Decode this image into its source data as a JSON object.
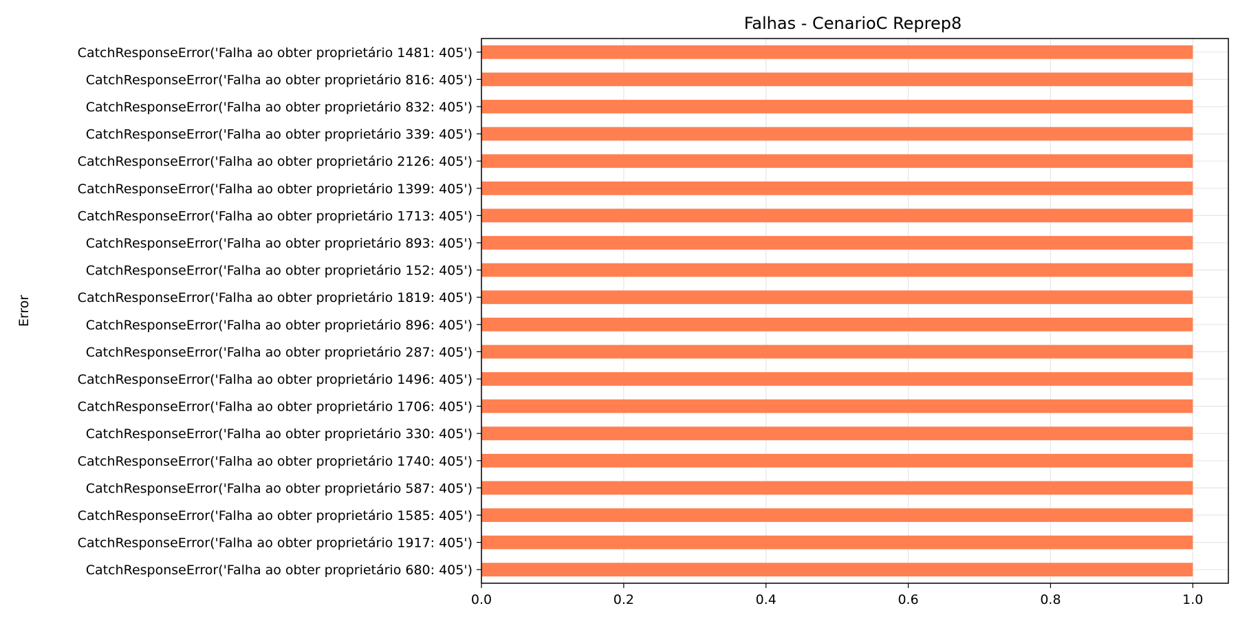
{
  "chart_data": {
    "type": "bar",
    "orientation": "horizontal",
    "title": "Falhas - CenarioC Reprep8",
    "xlabel": "",
    "ylabel": "Error",
    "xlim": [
      0,
      1.05
    ],
    "xticks": [
      0.0,
      0.2,
      0.4,
      0.6,
      0.8,
      1.0
    ],
    "xtick_labels": [
      "0.0",
      "0.2",
      "0.4",
      "0.6",
      "0.8",
      "1.0"
    ],
    "grid": true,
    "bar_color": "#ff7f50",
    "categories": [
      "CatchResponseError('Falha ao obter proprietário 1481: 405')",
      "CatchResponseError('Falha ao obter proprietário 816: 405')",
      "CatchResponseError('Falha ao obter proprietário 832: 405')",
      "CatchResponseError('Falha ao obter proprietário 339: 405')",
      "CatchResponseError('Falha ao obter proprietário 2126: 405')",
      "CatchResponseError('Falha ao obter proprietário 1399: 405')",
      "CatchResponseError('Falha ao obter proprietário 1713: 405')",
      "CatchResponseError('Falha ao obter proprietário 893: 405')",
      "CatchResponseError('Falha ao obter proprietário 152: 405')",
      "CatchResponseError('Falha ao obter proprietário 1819: 405')",
      "CatchResponseError('Falha ao obter proprietário 896: 405')",
      "CatchResponseError('Falha ao obter proprietário 287: 405')",
      "CatchResponseError('Falha ao obter proprietário 1496: 405')",
      "CatchResponseError('Falha ao obter proprietário 1706: 405')",
      "CatchResponseError('Falha ao obter proprietário 330: 405')",
      "CatchResponseError('Falha ao obter proprietário 1740: 405')",
      "CatchResponseError('Falha ao obter proprietário 587: 405')",
      "CatchResponseError('Falha ao obter proprietário 1585: 405')",
      "CatchResponseError('Falha ao obter proprietário 1917: 405')",
      "CatchResponseError('Falha ao obter proprietário 680: 405')"
    ],
    "values": [
      1,
      1,
      1,
      1,
      1,
      1,
      1,
      1,
      1,
      1,
      1,
      1,
      1,
      1,
      1,
      1,
      1,
      1,
      1,
      1
    ]
  }
}
